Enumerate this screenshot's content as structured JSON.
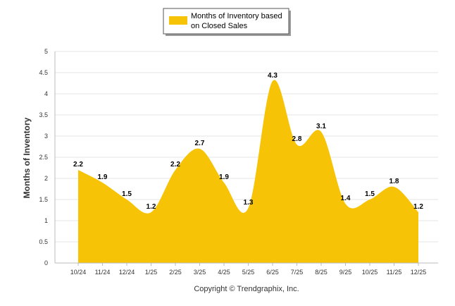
{
  "chart_data": {
    "type": "area",
    "title": "",
    "xlabel": "",
    "ylabel": "Months of Inventory",
    "ylim": [
      0,
      5
    ],
    "yticks": [
      "0",
      "0.5",
      "1",
      "1.5",
      "2",
      "2.5",
      "3",
      "3.5",
      "4",
      "4.5",
      "5"
    ],
    "categories": [
      "10/24",
      "11/24",
      "12/24",
      "1/25",
      "2/25",
      "3/25",
      "4/25",
      "5/25",
      "6/25",
      "7/25",
      "8/25",
      "9/25",
      "10/25",
      "11/25",
      "12/25"
    ],
    "series": [
      {
        "name": "Months of Inventory based on Closed Sales",
        "values": [
          2.2,
          1.9,
          1.5,
          1.2,
          2.2,
          2.7,
          1.9,
          1.3,
          4.3,
          2.8,
          3.1,
          1.4,
          1.5,
          1.8,
          1.2
        ],
        "color": "#F7C307"
      }
    ],
    "legend": {
      "position": "top-center",
      "lines": [
        "Months of Inventory based",
        "on Closed Sales"
      ]
    },
    "grid": true
  },
  "footer": {
    "copyright": "Copyright © Trendgraphix, Inc."
  },
  "colors": {
    "fill": "#F7C307",
    "grid": "#E6E6E6",
    "axis": "#BBBBBB"
  }
}
